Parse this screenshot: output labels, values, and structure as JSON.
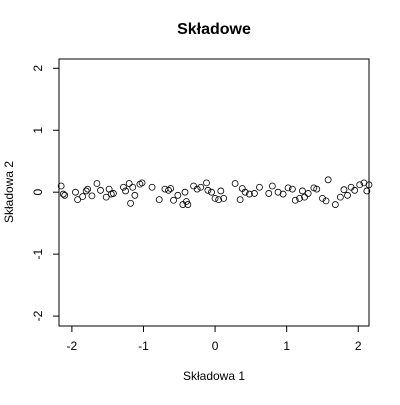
{
  "chart_data": {
    "type": "scatter",
    "title": "Składowe",
    "x_label": "Składowa 1",
    "y_label": "Składowa 2",
    "x": [
      -2.15,
      -2.12,
      -2.1,
      -1.95,
      -1.92,
      -1.85,
      -1.8,
      -1.78,
      -1.72,
      -1.65,
      -1.6,
      -1.52,
      -1.48,
      -1.45,
      -1.42,
      -1.28,
      -1.25,
      -1.2,
      -1.18,
      -1.15,
      -1.12,
      -1.05,
      -1.02,
      -0.88,
      -0.78,
      -0.7,
      -0.65,
      -0.62,
      -0.58,
      -0.52,
      -0.45,
      -0.42,
      -0.4,
      -0.38,
      -0.3,
      -0.25,
      -0.2,
      -0.12,
      -0.1,
      -0.05,
      0.0,
      0.05,
      0.08,
      0.12,
      0.28,
      0.35,
      0.38,
      0.42,
      0.48,
      0.55,
      0.62,
      0.75,
      0.8,
      0.88,
      0.95,
      1.02,
      1.08,
      1.12,
      1.18,
      1.22,
      1.25,
      1.3,
      1.38,
      1.42,
      1.5,
      1.55,
      1.58,
      1.68,
      1.75,
      1.8,
      1.85,
      1.9,
      1.95,
      2.02,
      2.08,
      2.12,
      2.15
    ],
    "values": [
      0.1,
      -0.03,
      -0.05,
      0.0,
      -0.12,
      -0.07,
      0.02,
      0.05,
      -0.06,
      0.14,
      0.03,
      -0.08,
      0.05,
      -0.03,
      -0.02,
      0.08,
      0.02,
      0.14,
      -0.18,
      0.08,
      -0.05,
      0.13,
      0.15,
      0.08,
      -0.12,
      0.05,
      0.03,
      0.06,
      -0.13,
      -0.05,
      -0.2,
      0.0,
      -0.15,
      -0.2,
      0.1,
      0.05,
      0.08,
      0.15,
      0.03,
      0.0,
      -0.1,
      -0.12,
      0.02,
      -0.1,
      0.14,
      -0.12,
      0.06,
      0.0,
      -0.03,
      -0.02,
      0.08,
      -0.02,
      0.1,
      0.0,
      -0.03,
      0.07,
      0.05,
      -0.13,
      -0.1,
      0.02,
      -0.08,
      -0.02,
      0.07,
      0.05,
      -0.1,
      -0.14,
      0.2,
      -0.2,
      -0.08,
      0.04,
      -0.05,
      0.08,
      0.03,
      0.12,
      0.15,
      0.02,
      0.12
    ],
    "color": "#000000",
    "xlim": [
      -2.18,
      2.15
    ],
    "ylim": [
      -2.16,
      2.15
    ],
    "xticks": [
      -2,
      -1,
      0,
      1,
      2
    ],
    "yticks": [
      -2,
      -1,
      0,
      1,
      2
    ]
  }
}
